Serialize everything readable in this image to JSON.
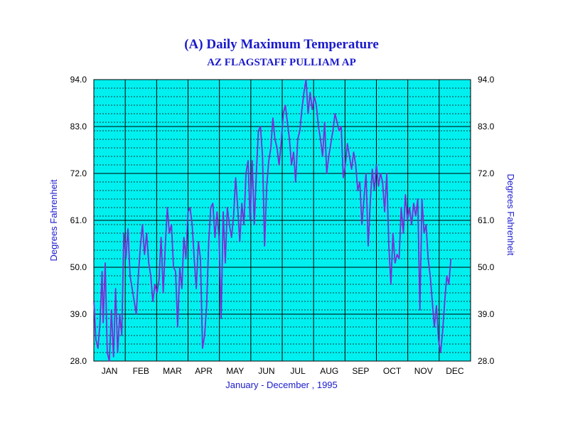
{
  "chart_data": {
    "type": "line",
    "title": "(A) Daily Maximum Temperature",
    "subtitle": "AZ FLAGSTAFF PULLIAM AP",
    "xlabel": "January  - December , 1995",
    "ylabel": "Degrees Fahrenheit",
    "ylabel_right": "Degrees Fahrenheit",
    "ylim": [
      28.0,
      94.0
    ],
    "xlim": [
      1,
      365
    ],
    "y_ticks": [
      "28.0",
      "39.0",
      "50.0",
      "61.0",
      "72.0",
      "83.0",
      "94.0"
    ],
    "y_tick_values": [
      28,
      39,
      50,
      61,
      72,
      83,
      94
    ],
    "months": [
      "JAN",
      "FEB",
      "MAR",
      "APR",
      "MAY",
      "JUN",
      "JUL",
      "AUG",
      "SEP",
      "OCT",
      "NOV",
      "DEC"
    ],
    "minor_y_step": 2,
    "grid": true,
    "colors": {
      "plot_bg": "#00f0f0",
      "line": "#7a2ed6",
      "title": "#1a1acc",
      "grid": "#000000"
    },
    "x_unit": "day of year",
    "series": [
      {
        "values": [
          [
            1,
            42
          ],
          [
            3,
            33
          ],
          [
            5,
            31
          ],
          [
            7,
            37
          ],
          [
            9,
            49
          ],
          [
            10,
            37
          ],
          [
            12,
            51
          ],
          [
            14,
            30
          ],
          [
            16,
            28
          ],
          [
            18,
            40
          ],
          [
            20,
            29
          ],
          [
            22,
            45
          ],
          [
            24,
            30
          ],
          [
            26,
            39
          ],
          [
            28,
            34
          ],
          [
            30,
            58
          ],
          [
            32,
            52
          ],
          [
            34,
            59
          ],
          [
            36,
            48
          ],
          [
            38,
            45
          ],
          [
            40,
            42
          ],
          [
            42,
            39
          ],
          [
            44,
            48
          ],
          [
            46,
            55
          ],
          [
            48,
            60
          ],
          [
            50,
            53
          ],
          [
            52,
            58
          ],
          [
            54,
            51
          ],
          [
            56,
            48
          ],
          [
            58,
            42
          ],
          [
            60,
            46
          ],
          [
            62,
            44
          ],
          [
            64,
            47
          ],
          [
            66,
            57
          ],
          [
            68,
            44
          ],
          [
            70,
            55
          ],
          [
            72,
            64
          ],
          [
            74,
            58
          ],
          [
            76,
            60
          ],
          [
            78,
            50
          ],
          [
            80,
            49
          ],
          [
            82,
            36
          ],
          [
            84,
            50
          ],
          [
            86,
            45
          ],
          [
            88,
            57
          ],
          [
            90,
            52
          ],
          [
            92,
            63
          ],
          [
            94,
            64
          ],
          [
            96,
            60
          ],
          [
            98,
            52
          ],
          [
            100,
            45
          ],
          [
            102,
            56
          ],
          [
            104,
            52
          ],
          [
            106,
            31
          ],
          [
            108,
            34
          ],
          [
            110,
            41
          ],
          [
            112,
            56
          ],
          [
            114,
            64
          ],
          [
            116,
            65
          ],
          [
            118,
            57
          ],
          [
            120,
            63
          ],
          [
            122,
            57
          ],
          [
            124,
            38
          ],
          [
            126,
            63
          ],
          [
            128,
            51
          ],
          [
            130,
            64
          ],
          [
            132,
            60
          ],
          [
            134,
            57
          ],
          [
            136,
            62
          ],
          [
            138,
            71
          ],
          [
            140,
            64
          ],
          [
            142,
            56
          ],
          [
            144,
            65
          ],
          [
            146,
            60
          ],
          [
            148,
            72
          ],
          [
            150,
            75
          ],
          [
            152,
            61
          ],
          [
            154,
            75
          ],
          [
            156,
            60
          ],
          [
            158,
            72
          ],
          [
            160,
            82
          ],
          [
            162,
            83
          ],
          [
            164,
            76
          ],
          [
            166,
            55
          ],
          [
            168,
            69
          ],
          [
            170,
            75
          ],
          [
            172,
            78
          ],
          [
            174,
            85
          ],
          [
            176,
            80
          ],
          [
            178,
            78
          ],
          [
            180,
            74
          ],
          [
            182,
            79
          ],
          [
            184,
            86
          ],
          [
            186,
            88
          ],
          [
            188,
            84
          ],
          [
            190,
            80
          ],
          [
            192,
            74
          ],
          [
            194,
            77
          ],
          [
            196,
            70
          ],
          [
            198,
            80
          ],
          [
            200,
            82
          ],
          [
            202,
            87
          ],
          [
            204,
            91
          ],
          [
            206,
            94
          ],
          [
            208,
            86
          ],
          [
            210,
            91
          ],
          [
            212,
            87
          ],
          [
            214,
            90
          ],
          [
            216,
            88
          ],
          [
            218,
            83
          ],
          [
            220,
            80
          ],
          [
            222,
            76
          ],
          [
            224,
            84
          ],
          [
            226,
            72
          ],
          [
            228,
            76
          ],
          [
            230,
            79
          ],
          [
            232,
            82
          ],
          [
            234,
            86
          ],
          [
            236,
            84
          ],
          [
            238,
            82
          ],
          [
            240,
            83
          ],
          [
            242,
            71
          ],
          [
            244,
            74
          ],
          [
            246,
            79
          ],
          [
            248,
            76
          ],
          [
            250,
            73
          ],
          [
            252,
            77
          ],
          [
            254,
            74
          ],
          [
            256,
            68
          ],
          [
            258,
            70
          ],
          [
            260,
            60
          ],
          [
            262,
            66
          ],
          [
            264,
            72
          ],
          [
            266,
            55
          ],
          [
            268,
            65
          ],
          [
            270,
            73
          ],
          [
            272,
            68
          ],
          [
            274,
            74
          ],
          [
            276,
            69
          ],
          [
            278,
            72
          ],
          [
            280,
            70
          ],
          [
            282,
            63
          ],
          [
            284,
            72
          ],
          [
            286,
            55
          ],
          [
            288,
            46
          ],
          [
            290,
            58
          ],
          [
            292,
            51
          ],
          [
            294,
            53
          ],
          [
            296,
            52
          ],
          [
            298,
            64
          ],
          [
            300,
            58
          ],
          [
            302,
            67
          ],
          [
            304,
            61
          ],
          [
            306,
            64
          ],
          [
            308,
            60
          ],
          [
            310,
            65
          ],
          [
            312,
            62
          ],
          [
            314,
            66
          ],
          [
            316,
            40
          ],
          [
            318,
            66
          ],
          [
            320,
            58
          ],
          [
            322,
            60
          ],
          [
            324,
            52
          ],
          [
            326,
            48
          ],
          [
            328,
            42
          ],
          [
            330,
            36
          ],
          [
            332,
            41
          ],
          [
            334,
            33
          ],
          [
            336,
            30
          ],
          [
            338,
            35
          ],
          [
            340,
            42
          ],
          [
            342,
            48
          ],
          [
            344,
            46
          ],
          [
            346,
            52
          ]
        ]
      }
    ]
  }
}
